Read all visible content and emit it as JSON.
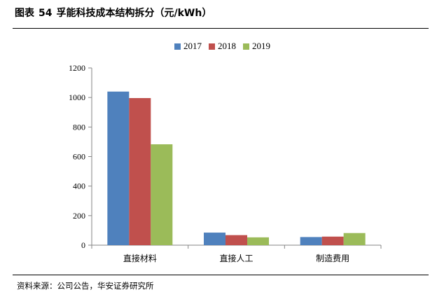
{
  "header": {
    "label": "图表",
    "number": "54",
    "title": "孚能科技成本结构拆分（元/kWh）"
  },
  "footer": {
    "source": "资料来源：公司公告，华安证券研究所"
  },
  "colors": {
    "2017": "#4F81BD",
    "2018": "#C0504D",
    "2019": "#9BBB59",
    "axis": "#868686"
  },
  "chart_data": {
    "type": "bar",
    "title": "",
    "xlabel": "",
    "ylabel": "",
    "categories": [
      "直接材料",
      "直接人工",
      "制造费用"
    ],
    "series": [
      {
        "name": "2017",
        "values": [
          1040,
          85,
          55
        ]
      },
      {
        "name": "2018",
        "values": [
          996,
          68,
          58
        ]
      },
      {
        "name": "2019",
        "values": [
          683,
          53,
          82
        ]
      }
    ],
    "ylim": [
      0,
      1200
    ],
    "yticks": [
      "0",
      "200",
      "400",
      "600",
      "800",
      "1000",
      "1200"
    ],
    "grid": false,
    "legend": "top"
  }
}
